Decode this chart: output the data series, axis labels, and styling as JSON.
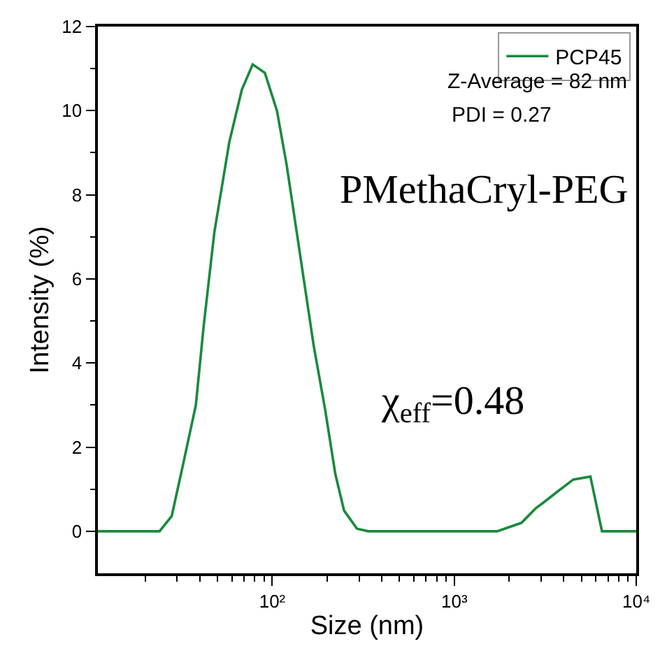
{
  "chart_data": {
    "type": "line",
    "xlabel": "Size (nm)",
    "ylabel": "Intensity (%)",
    "log": "x",
    "xlim": [
      11,
      10000
    ],
    "xticks": [
      {
        "value": 20,
        "label": null
      },
      {
        "value": 30,
        "label": null
      },
      {
        "value": 40,
        "label": null
      },
      {
        "value": 50,
        "label": null
      },
      {
        "value": 60,
        "label": null
      },
      {
        "value": 70,
        "label": null
      },
      {
        "value": 80,
        "label": null
      },
      {
        "value": 90,
        "label": null
      },
      {
        "value": 100,
        "label": "10²"
      },
      {
        "value": 200,
        "label": null
      },
      {
        "value": 300,
        "label": null
      },
      {
        "value": 400,
        "label": null
      },
      {
        "value": 500,
        "label": null
      },
      {
        "value": 600,
        "label": null
      },
      {
        "value": 700,
        "label": null
      },
      {
        "value": 800,
        "label": null
      },
      {
        "value": 900,
        "label": null
      },
      {
        "value": 1000,
        "label": "10³"
      },
      {
        "value": 2000,
        "label": null
      },
      {
        "value": 3000,
        "label": null
      },
      {
        "value": 4000,
        "label": null
      },
      {
        "value": 5000,
        "label": null
      },
      {
        "value": 6000,
        "label": null
      },
      {
        "value": 7000,
        "label": null
      },
      {
        "value": 8000,
        "label": null
      },
      {
        "value": 9000,
        "label": null
      },
      {
        "value": 10000,
        "label": "10⁴"
      }
    ],
    "ylim": [
      -1,
      12
    ],
    "yticks": [
      0,
      {
        "value": 1,
        "label": null
      },
      2,
      {
        "value": 3,
        "label": null
      },
      4,
      {
        "value": 5,
        "label": null
      },
      6,
      {
        "value": 7,
        "label": null
      },
      8,
      {
        "value": 9,
        "label": null
      },
      10,
      {
        "value": 11,
        "label": null
      },
      12
    ],
    "grid": false,
    "legend": "top right",
    "marker": "none",
    "line_style": "solid",
    "series": [
      {
        "name": "PCP45",
        "color": "#1a8a3c",
        "x": [
          11,
          24,
          28,
          32,
          38,
          42,
          48,
          58,
          68,
          78,
          91,
          106,
          120,
          169,
          195,
          222,
          248,
          292,
          337,
          1720,
          2340,
          2810,
          3130,
          3760,
          4510,
          5600,
          6480,
          10000
        ],
        "values": [
          0,
          0,
          0.36,
          1.5,
          3.0,
          4.9,
          7.1,
          9.25,
          10.5,
          11.1,
          10.9,
          10.0,
          8.7,
          4.4,
          2.9,
          1.36,
          0.49,
          0.06,
          0,
          0,
          0.2,
          0.55,
          0.7,
          0.97,
          1.23,
          1.3,
          0,
          0
        ]
      }
    ],
    "annotations": [
      "Z-Average = 82 nm",
      "PDI = 0.27",
      "PMethaCryl-PEG",
      "χ$_{eff}$=0.48"
    ]
  }
}
